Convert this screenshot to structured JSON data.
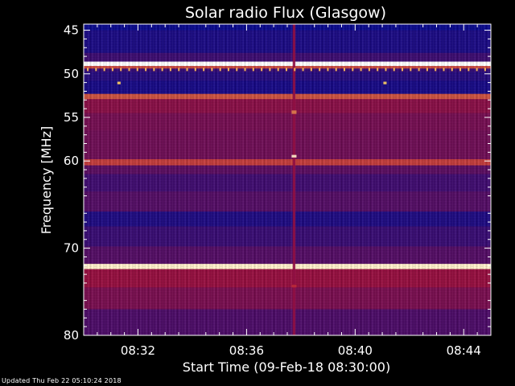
{
  "chart_data": {
    "type": "heatmap",
    "title": "Solar radio Flux (Glasgow)",
    "xlabel": "Start Time (09-Feb-18 08:30:00)",
    "ylabel": "Frequency [MHz]",
    "x_unit": "minutes after 08:30:00",
    "xlim": [
      0,
      15
    ],
    "ylim": [
      80,
      44.3
    ],
    "x_ticks": [
      {
        "value": 2,
        "label": "08:32"
      },
      {
        "value": 6,
        "label": "08:36"
      },
      {
        "value": 10,
        "label": "08:40"
      },
      {
        "value": 14,
        "label": "08:44"
      }
    ],
    "y_ticks": [
      {
        "value": 45,
        "label": "45"
      },
      {
        "value": 50,
        "label": "50"
      },
      {
        "value": 55,
        "label": "55"
      },
      {
        "value": 60,
        "label": "60"
      },
      {
        "value": 70,
        "label": "70"
      },
      {
        "value": 80,
        "label": "80"
      }
    ],
    "colormap": {
      "low": "#0a0a8c",
      "mid": "#b01030",
      "high": "#ffd060",
      "peak": "#ffffff"
    },
    "frequency_bands": [
      {
        "from": 44.3,
        "to": 45.0,
        "level": 0.0
      },
      {
        "from": 45.0,
        "to": 47.6,
        "level": 0.05
      },
      {
        "from": 47.6,
        "to": 48.6,
        "level": 0.15
      },
      {
        "from": 48.6,
        "to": 49.1,
        "level": 1.0
      },
      {
        "from": 49.1,
        "to": 49.4,
        "level": 0.6
      },
      {
        "from": 49.4,
        "to": 49.8,
        "level": 0.12
      },
      {
        "from": 49.8,
        "to": 50.8,
        "level": 0.08
      },
      {
        "from": 50.8,
        "to": 52.3,
        "level": 0.04
      },
      {
        "from": 52.3,
        "to": 52.9,
        "level": 0.62
      },
      {
        "from": 52.9,
        "to": 54.5,
        "level": 0.38
      },
      {
        "from": 54.5,
        "to": 56.5,
        "level": 0.32
      },
      {
        "from": 56.5,
        "to": 59.8,
        "level": 0.3
      },
      {
        "from": 59.8,
        "to": 60.5,
        "level": 0.58
      },
      {
        "from": 60.5,
        "to": 61.5,
        "level": 0.24
      },
      {
        "from": 61.5,
        "to": 63.5,
        "level": 0.16
      },
      {
        "from": 63.5,
        "to": 65.8,
        "level": 0.22
      },
      {
        "from": 65.8,
        "to": 67.5,
        "level": 0.06
      },
      {
        "from": 67.5,
        "to": 69.8,
        "level": 0.14
      },
      {
        "from": 69.8,
        "to": 71.8,
        "level": 0.22
      },
      {
        "from": 71.8,
        "to": 72.4,
        "level": 0.95
      },
      {
        "from": 72.4,
        "to": 74.5,
        "level": 0.42
      },
      {
        "from": 74.5,
        "to": 77.0,
        "level": 0.33
      },
      {
        "from": 77.0,
        "to": 80.0,
        "level": 0.2
      }
    ],
    "time_features": [
      {
        "x": 7.75,
        "width": 0.1,
        "from": 44.3,
        "to": 80.0,
        "level": 0.4
      },
      {
        "x": 7.75,
        "width": 0.18,
        "from": 54.2,
        "to": 54.6,
        "level": 0.7
      },
      {
        "x": 7.75,
        "width": 0.18,
        "from": 59.3,
        "to": 59.6,
        "level": 0.95
      },
      {
        "x": 7.75,
        "width": 0.18,
        "from": 74.2,
        "to": 74.5,
        "level": 0.55
      },
      {
        "x": 1.3,
        "width": 0.12,
        "from": 50.9,
        "to": 51.2,
        "level": 0.85
      },
      {
        "x": 11.1,
        "width": 0.12,
        "from": 50.9,
        "to": 51.2,
        "level": 0.85
      }
    ],
    "periodic_dots": {
      "freq": 49.5,
      "x_start": 0.15,
      "x_step": 0.305,
      "level": 0.8
    }
  },
  "footer": "Updated Thu Feb 22 05:10:24 2018"
}
